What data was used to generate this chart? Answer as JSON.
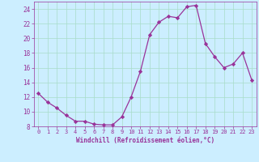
{
  "x": [
    0,
    1,
    2,
    3,
    4,
    5,
    6,
    7,
    8,
    9,
    10,
    11,
    12,
    13,
    14,
    15,
    16,
    17,
    18,
    19,
    20,
    21,
    22,
    23
  ],
  "y": [
    12.5,
    11.3,
    10.5,
    9.5,
    8.7,
    8.7,
    8.3,
    8.2,
    8.2,
    9.3,
    12.0,
    15.5,
    20.5,
    22.2,
    23.0,
    22.8,
    24.3,
    24.5,
    19.3,
    17.5,
    16.0,
    16.5,
    18.0,
    14.3
  ],
  "line_color": "#993399",
  "marker": "D",
  "marker_size": 2.2,
  "xlabel": "Windchill (Refroidissement éolien,°C)",
  "xlim": [
    -0.5,
    23.5
  ],
  "ylim": [
    8,
    25
  ],
  "yticks": [
    8,
    10,
    12,
    14,
    16,
    18,
    20,
    22,
    24
  ],
  "xticks": [
    0,
    1,
    2,
    3,
    4,
    5,
    6,
    7,
    8,
    9,
    10,
    11,
    12,
    13,
    14,
    15,
    16,
    17,
    18,
    19,
    20,
    21,
    22,
    23
  ],
  "bg_color": "#cceeff",
  "grid_color": "#aaddcc",
  "tick_color": "#993399",
  "label_color": "#993399"
}
